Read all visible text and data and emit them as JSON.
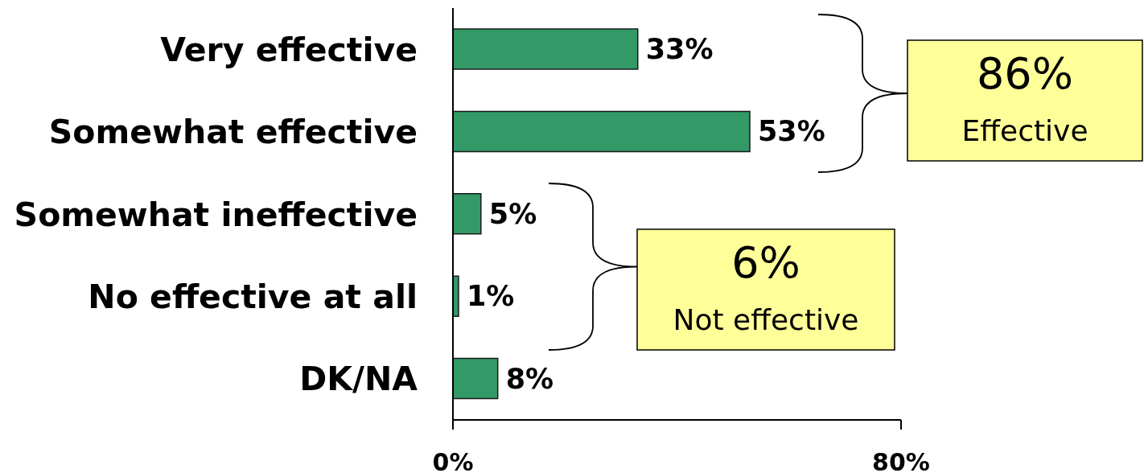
{
  "chart_data": {
    "type": "bar",
    "orientation": "horizontal",
    "categories": [
      "Very effective",
      "Somewhat effective",
      "Somewhat ineffective",
      "No effective at all",
      "DK/NA"
    ],
    "values": [
      33,
      53,
      5,
      1,
      8
    ],
    "value_labels": [
      "33%",
      "53%",
      "5%",
      "1%",
      "8%"
    ],
    "color": "#339966",
    "xlim": [
      0,
      80
    ],
    "xticks": [
      {
        "value": 0,
        "label": "0%"
      },
      {
        "value": 80,
        "label": "80%"
      }
    ],
    "grid": false,
    "annotations": [
      "86%",
      "Effective",
      "6%",
      "Not effective"
    ]
  }
}
